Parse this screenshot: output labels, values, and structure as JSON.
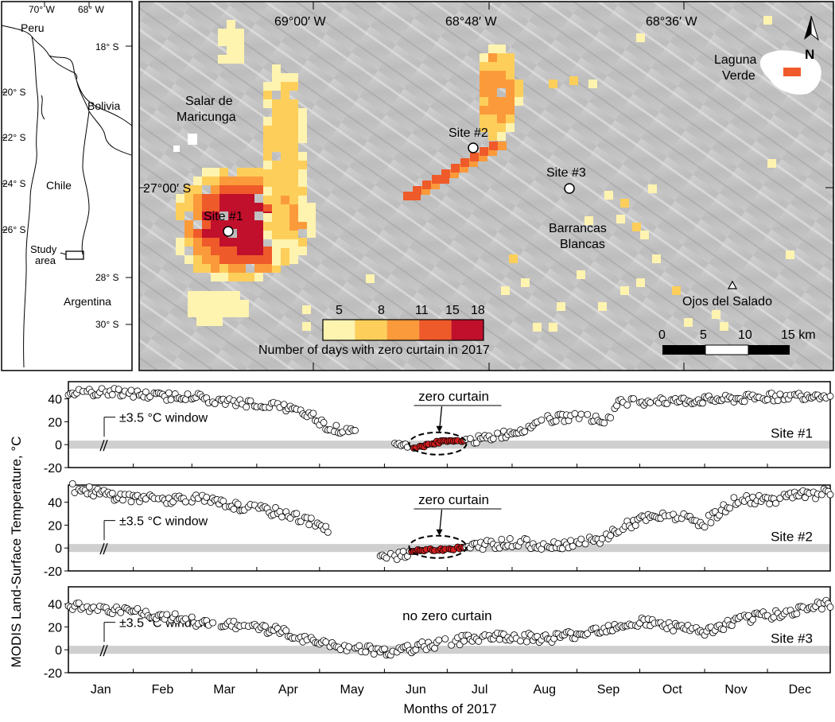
{
  "inset_map": {
    "lon_labels": [
      "70° W",
      "68° W"
    ],
    "lat_labels": [
      "18° S",
      "20° S",
      "22° S",
      "24° S",
      "26° S",
      "28° S",
      "30° S"
    ],
    "countries": [
      "Peru",
      "Bolivia",
      "Chile",
      "Argentina"
    ],
    "study_area_label": [
      "Study",
      "area"
    ]
  },
  "main_map": {
    "lon_labels": [
      "69°00′ W",
      "68°48′ W",
      "68°36′ W"
    ],
    "lat_label": "27°00′ S",
    "place_labels": {
      "salar": [
        "Salar de",
        "Maricunga"
      ],
      "laguna": [
        "Laguna",
        "Verde"
      ],
      "barrancas": [
        "Barrancas",
        "Blancas"
      ],
      "ojos": "Ojos del Salado"
    },
    "sites": [
      "Site #1",
      "Site #2",
      "Site #3"
    ],
    "north_label": "N",
    "scale_bar": {
      "ticks": [
        "0",
        "5",
        "10",
        "15 km"
      ]
    },
    "legend": {
      "title": "Number of days with zero curtain in 2017",
      "ticks": [
        "5",
        "8",
        "11",
        "15",
        "18"
      ],
      "colors": [
        "#fff3b0",
        "#fdcf5a",
        "#fb9a3a",
        "#ef5a2a",
        "#c0102c"
      ]
    }
  },
  "chart_data": [
    {
      "type": "scatter",
      "site": "Site #1",
      "ylabel": "MODIS Land-Surface Temperature, °C",
      "yticks": [
        "40",
        "20",
        "0",
        "-20"
      ],
      "ylim": [
        -20,
        55
      ],
      "window_label": "±3.5 °C window",
      "window": [
        -3.5,
        3.5
      ],
      "annotation": "zero curtain",
      "zero_curtain": [
        165,
        190
      ],
      "gap": [
        138,
        157
      ],
      "anchors": [
        [
          1,
          45
        ],
        [
          25,
          46
        ],
        [
          45,
          42
        ],
        [
          60,
          43
        ],
        [
          75,
          37
        ],
        [
          90,
          36
        ],
        [
          105,
          32
        ],
        [
          118,
          25
        ],
        [
          125,
          15
        ],
        [
          157,
          3
        ],
        [
          165,
          -4
        ],
        [
          175,
          1
        ],
        [
          182,
          4
        ],
        [
          190,
          3
        ],
        [
          200,
          5
        ],
        [
          215,
          12
        ],
        [
          230,
          22
        ],
        [
          245,
          25
        ],
        [
          258,
          20
        ],
        [
          265,
          38
        ],
        [
          290,
          38
        ],
        [
          320,
          40
        ],
        [
          365,
          44
        ]
      ],
      "noise": 3.5
    },
    {
      "type": "scatter",
      "site": "Site #2",
      "ylabel": "MODIS Land-Surface Temperature, °C",
      "yticks": [
        "40",
        "20",
        "0",
        "-20"
      ],
      "ylim": [
        -20,
        55
      ],
      "window_label": "±3.5 °C window",
      "window": [
        -3.5,
        3.5
      ],
      "annotation": "zero curtain",
      "zero_curtain": [
        165,
        190
      ],
      "gap": [
        125,
        150
      ],
      "anchors": [
        [
          1,
          53
        ],
        [
          25,
          45
        ],
        [
          45,
          42
        ],
        [
          60,
          44
        ],
        [
          75,
          38
        ],
        [
          90,
          34
        ],
        [
          105,
          30
        ],
        [
          118,
          22
        ],
        [
          125,
          15
        ],
        [
          150,
          -10
        ],
        [
          160,
          -5
        ],
        [
          170,
          -2
        ],
        [
          180,
          -1
        ],
        [
          190,
          0
        ],
        [
          200,
          3
        ],
        [
          215,
          5
        ],
        [
          230,
          2
        ],
        [
          245,
          5
        ],
        [
          255,
          6
        ],
        [
          262,
          15
        ],
        [
          275,
          25
        ],
        [
          290,
          28
        ],
        [
          305,
          22
        ],
        [
          320,
          42
        ],
        [
          335,
          42
        ],
        [
          350,
          46
        ],
        [
          365,
          48
        ]
      ],
      "noise": 4
    },
    {
      "type": "scatter",
      "site": "Site #3",
      "ylabel": "MODIS Land-Surface Temperature, °C",
      "yticks": [
        "40",
        "20",
        "0",
        "-20"
      ],
      "ylim": [
        -20,
        55
      ],
      "window_label": "±3.5 °C window",
      "window": [
        -3.5,
        3.5
      ],
      "annotation": "no zero curtain",
      "zero_curtain": null,
      "gap": null,
      "anchors": [
        [
          1,
          38
        ],
        [
          25,
          34
        ],
        [
          45,
          30
        ],
        [
          60,
          25
        ],
        [
          75,
          22
        ],
        [
          90,
          20
        ],
        [
          105,
          15
        ],
        [
          115,
          8
        ],
        [
          130,
          2
        ],
        [
          145,
          0
        ],
        [
          158,
          -2
        ],
        [
          175,
          5
        ],
        [
          195,
          10
        ],
        [
          210,
          12
        ],
        [
          230,
          10
        ],
        [
          245,
          14
        ],
        [
          260,
          20
        ],
        [
          275,
          25
        ],
        [
          290,
          20
        ],
        [
          305,
          15
        ],
        [
          320,
          25
        ],
        [
          335,
          30
        ],
        [
          350,
          35
        ],
        [
          365,
          40
        ]
      ],
      "noise": 4
    }
  ],
  "x_axis": {
    "months": [
      "Jan",
      "Feb",
      "Mar",
      "Apr",
      "May",
      "Jun",
      "Jul",
      "Aug",
      "Sep",
      "Oct",
      "Nov",
      "Dec"
    ],
    "xlabel": "Months of 2017"
  }
}
